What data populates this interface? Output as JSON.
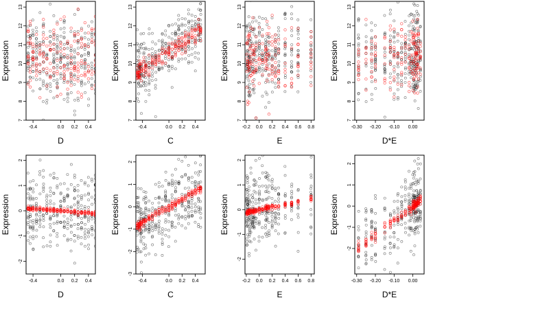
{
  "figure": {
    "rows": 2,
    "cols": 4,
    "colors": {
      "observed": "#000000",
      "fitted": "#ff0000",
      "background": "#ffffff"
    },
    "marker": "open-circle",
    "grid": false,
    "legend": "none"
  },
  "chart_data": [
    {
      "type": "scatter",
      "xlabel": "D",
      "ylabel": "Expression",
      "xlim": [
        -0.5,
        0.5
      ],
      "ylim": [
        7,
        13.3
      ],
      "xticks": [
        -0.4,
        0.0,
        0.2,
        0.4
      ],
      "xtick_labels": [
        "-0.4",
        "0.0",
        "0.2",
        "0.4"
      ],
      "yticks": [
        7,
        8,
        9,
        10,
        11,
        12,
        13
      ],
      "ytick_labels": [
        "7",
        "8",
        "9",
        "10",
        "11",
        "12",
        "13"
      ],
      "x_levels": [
        -0.47,
        -0.44,
        -0.4,
        -0.35,
        -0.3,
        -0.25,
        -0.2,
        -0.15,
        -0.1,
        -0.05,
        0.0,
        0.05,
        0.1,
        0.15,
        0.2,
        0.25,
        0.3,
        0.35,
        0.4,
        0.45,
        0.5
      ],
      "observed_mean": 10.3,
      "observed_sd": 1.1,
      "fitted_mean": 10.3,
      "fitted_sd": 0.95
    },
    {
      "type": "scatter",
      "xlabel": "C",
      "ylabel": "Expression",
      "xlim": [
        -0.5,
        0.55
      ],
      "ylim": [
        7,
        13.3
      ],
      "xticks": [
        -0.4,
        0.0,
        0.2,
        0.4
      ],
      "xtick_labels": [
        "-0.4",
        "0.0",
        "0.2",
        "0.4"
      ],
      "yticks": [
        7,
        8,
        9,
        10,
        11,
        12,
        13
      ],
      "ytick_labels": [
        "7",
        "8",
        "9",
        "10",
        "11",
        "12",
        "13"
      ],
      "x_levels": [
        -0.48,
        -0.46,
        -0.44,
        -0.42,
        -0.38,
        -0.35,
        -0.3,
        -0.25,
        -0.2,
        -0.15,
        -0.1,
        -0.05,
        0.0,
        0.05,
        0.1,
        0.15,
        0.2,
        0.25,
        0.3,
        0.35,
        0.4,
        0.45,
        0.48
      ],
      "trend_intercept": 10.65,
      "trend_slope": 2.4,
      "observed_sd": 0.9,
      "fitted_sd": 0.25
    },
    {
      "type": "scatter",
      "xlabel": "E",
      "ylabel": "Expression",
      "xlim": [
        -0.22,
        0.85
      ],
      "ylim": [
        7,
        13.3
      ],
      "xticks": [
        -0.2,
        0.0,
        0.2,
        0.4,
        0.6,
        0.8
      ],
      "xtick_labels": [
        "-0.2",
        "0.0",
        "0.2",
        "0.4",
        "0.6",
        "0.8"
      ],
      "yticks": [
        7,
        8,
        9,
        10,
        11,
        12,
        13
      ],
      "ytick_labels": [
        "7",
        "8",
        "9",
        "10",
        "11",
        "12",
        "13"
      ],
      "x_levels": [
        -0.19,
        -0.18,
        -0.16,
        -0.15,
        -0.13,
        -0.1,
        -0.08,
        -0.05,
        0.0,
        0.05,
        0.1,
        0.12,
        0.15,
        0.2,
        0.25,
        0.3,
        0.4,
        0.5,
        0.6,
        0.8
      ],
      "observed_mean": 10.4,
      "observed_sd": 1.15,
      "fitted_mean": 10.3,
      "fitted_sd": 0.9
    },
    {
      "type": "scatter",
      "xlabel": "D*E",
      "ylabel": "Expression",
      "xlim": [
        -0.31,
        0.06
      ],
      "ylim": [
        7,
        13.3
      ],
      "xticks": [
        -0.3,
        -0.2,
        -0.1,
        0.0
      ],
      "xtick_labels": [
        "-0.30",
        "-0.20",
        "-0.10",
        "0.00"
      ],
      "yticks": [
        7,
        8,
        9,
        10,
        11,
        12,
        13
      ],
      "ytick_labels": [
        "7",
        "8",
        "9",
        "10",
        "11",
        "12",
        "13"
      ],
      "x_levels": [
        -0.29,
        -0.25,
        -0.22,
        -0.2,
        -0.15,
        -0.12,
        -0.1,
        -0.08,
        -0.06,
        -0.04,
        -0.02,
        -0.01,
        0.0,
        0.005,
        0.01,
        0.015,
        0.02,
        0.025,
        0.03,
        0.04
      ],
      "observed_mean": 10.3,
      "observed_sd": 1.15,
      "fitted_mean": 10.3,
      "fitted_sd": 0.95
    },
    {
      "type": "scatter",
      "xlabel": "D",
      "ylabel": "Expression",
      "xlim": [
        -0.5,
        0.5
      ],
      "ylim": [
        -2.5,
        2.2
      ],
      "xticks": [
        -0.4,
        0.0,
        0.2,
        0.4
      ],
      "xtick_labels": [
        "-0.4",
        "0.0",
        "0.2",
        "0.4"
      ],
      "yticks": [
        -2,
        -1,
        0,
        1,
        2
      ],
      "ytick_labels": [
        "-2",
        "-1",
        "0",
        "1",
        "2"
      ],
      "x_levels": [
        -0.47,
        -0.44,
        -0.4,
        -0.35,
        -0.3,
        -0.25,
        -0.2,
        -0.15,
        -0.1,
        -0.05,
        0.0,
        0.05,
        0.1,
        0.15,
        0.2,
        0.25,
        0.3,
        0.35,
        0.4,
        0.45,
        0.5
      ],
      "trend_intercept": 0.0,
      "trend_slope": -0.2,
      "observed_sd": 0.75,
      "fitted_sd": 0.04
    },
    {
      "type": "scatter",
      "xlabel": "C",
      "ylabel": "Expression",
      "xlim": [
        -0.5,
        0.55
      ],
      "ylim": [
        -3,
        2.3
      ],
      "xticks": [
        -0.4,
        0.0,
        0.2,
        0.4
      ],
      "xtick_labels": [
        "-0.4",
        "0.0",
        "0.2",
        "0.4"
      ],
      "yticks": [
        -3,
        -2,
        -1,
        0,
        1,
        2
      ],
      "ytick_labels": [
        "-3",
        "-2",
        "-1",
        "0",
        "1",
        "2"
      ],
      "x_levels": [
        -0.48,
        -0.46,
        -0.44,
        -0.42,
        -0.38,
        -0.35,
        -0.3,
        -0.25,
        -0.2,
        -0.15,
        -0.1,
        -0.05,
        0.0,
        0.05,
        0.1,
        0.15,
        0.2,
        0.25,
        0.3,
        0.35,
        0.4,
        0.45,
        0.48
      ],
      "trend_intercept": 0.0,
      "trend_slope": 1.75,
      "observed_sd": 0.8,
      "fitted_sd": 0.08
    },
    {
      "type": "scatter",
      "xlabel": "E",
      "ylabel": "Expression",
      "xlim": [
        -0.22,
        0.85
      ],
      "ylim": [
        -2.6,
        2.2
      ],
      "xticks": [
        -0.2,
        0.0,
        0.2,
        0.4,
        0.6,
        0.8
      ],
      "xtick_labels": [
        "-0.2",
        "0.0",
        "0.2",
        "0.4",
        "0.6",
        "0.8"
      ],
      "yticks": [
        -2,
        -1,
        0,
        1,
        2
      ],
      "ytick_labels": [
        "-2",
        "-1",
        "0",
        "1",
        "2"
      ],
      "x_levels": [
        -0.19,
        -0.18,
        -0.16,
        -0.15,
        -0.13,
        -0.1,
        -0.08,
        -0.05,
        0.0,
        0.05,
        0.1,
        0.12,
        0.15,
        0.2,
        0.25,
        0.3,
        0.4,
        0.5,
        0.6,
        0.8
      ],
      "trend_intercept": 0.0,
      "trend_slope": 0.55,
      "observed_sd": 0.8,
      "fitted_sd": 0.05
    },
    {
      "type": "scatter",
      "xlabel": "D*E",
      "ylabel": "Expression",
      "xlim": [
        -0.31,
        0.06
      ],
      "ylim": [
        -3.2,
        2.4
      ],
      "xticks": [
        -0.3,
        -0.2,
        -0.1,
        0.0
      ],
      "xtick_labels": [
        "-0.30",
        "-0.20",
        "-0.10",
        "0.00"
      ],
      "yticks": [
        -2,
        -1,
        0,
        1,
        2
      ],
      "ytick_labels": [
        "-2",
        "-1",
        "0",
        "1",
        "2"
      ],
      "x_levels": [
        -0.29,
        -0.25,
        -0.22,
        -0.2,
        -0.15,
        -0.12,
        -0.1,
        -0.08,
        -0.06,
        -0.04,
        -0.02,
        -0.01,
        0.0,
        0.005,
        0.01,
        0.015,
        0.02,
        0.025,
        0.03,
        0.04
      ],
      "trend_intercept": 0.0,
      "trend_slope": 6.8,
      "observed_sd": 0.85,
      "fitted_sd": 0.12
    }
  ]
}
